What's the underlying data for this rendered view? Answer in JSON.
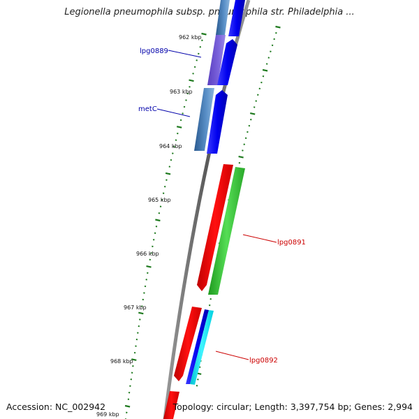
{
  "title": "Legionella pneumophila subsp. pneumophila str. Philadelphia ...",
  "accession": "Accession: NC_002942",
  "topology": "Topology: circular; Length: 3,397,754 bp; Genes: 2,994",
  "tick_labels": [
    "962 kbp",
    "963 kbp",
    "964 kbp",
    "965 kbp",
    "966 kbp",
    "967 kbp",
    "968 kbp",
    "969 kbp"
  ],
  "gene_labels": {
    "lpg0889": "lpg0889",
    "metC": "metC",
    "lpg0891": "lpg0891",
    "lpg0892": "lpg0892"
  },
  "colors": {
    "backbone": "#7f7f7f",
    "tick": "#1f7a1f",
    "label_blue": "#0000aa",
    "label_red": "#cc0000",
    "gene_blue": "#0000ee",
    "gene_steel": "#4a7fb8",
    "gene_purple": "#6a4fd0",
    "gene_red": "#ee0000",
    "gene_green": "#33bb33",
    "gene_cyan": "#00e5f0"
  }
}
